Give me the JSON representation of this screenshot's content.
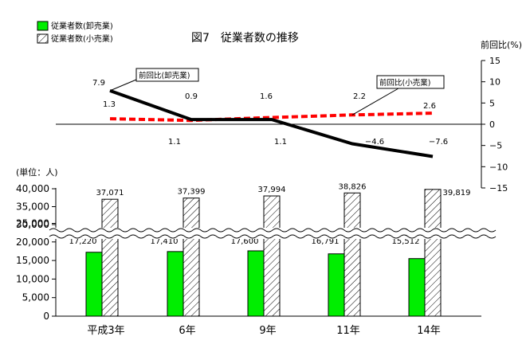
{
  "chart_data": {
    "type": "bar+line",
    "title": "図7　従業者数の推移",
    "categories": [
      "平成3年",
      "6年",
      "9年",
      "11年",
      "14年"
    ],
    "legend": {
      "wholesale": "従業者数(卸売業)",
      "retail": "従業者数(小売業)",
      "placement": "top-left"
    },
    "bar_axis": {
      "unit_label": "(単位：人)",
      "tick_labels_lower": [
        "0",
        "5,000",
        "10,000",
        "15,000",
        "20,000",
        "25,000"
      ],
      "tick_labels_upper": [
        "30,000",
        "35,000",
        "40,000"
      ],
      "broken_axis": true,
      "ylim": [
        0,
        40000
      ]
    },
    "line_axis": {
      "unit_label": "前回比(%)",
      "tick_labels": [
        "15",
        "10",
        "5",
        "0",
        "−5",
        "−10",
        "−15"
      ],
      "ylim": [
        -15,
        15
      ]
    },
    "bar_series": [
      {
        "name": "従業者数(卸売業)",
        "color": "#00ee00",
        "values": [
          17220,
          17410,
          17600,
          16791,
          15512
        ],
        "labels": [
          "17,220",
          "17,410",
          "17,600",
          "16,791",
          "15,512"
        ]
      },
      {
        "name": "従業者数(小売業)",
        "color": "#ffffff",
        "pattern": "diagonal-hatch",
        "values": [
          37071,
          37399,
          37994,
          38826,
          39819
        ],
        "labels": [
          "37,071",
          "37,399",
          "37,994",
          "38,826",
          "39,819"
        ]
      }
    ],
    "line_series": [
      {
        "name": "前回比(卸売業)",
        "color": "#000000",
        "style": "solid",
        "values": [
          7.9,
          1.1,
          1.1,
          -4.6,
          -7.6
        ],
        "labels": [
          "7.9",
          "1.1",
          "1.1",
          "−4.6",
          "−7.6"
        ],
        "callout": "前回比(卸売業)"
      },
      {
        "name": "前回比(小売業)",
        "color": "#ff0000",
        "style": "dashed",
        "values": [
          1.3,
          0.9,
          1.6,
          2.2,
          2.6
        ],
        "labels": [
          "1.3",
          "0.9",
          "1.6",
          "2.2",
          "2.6"
        ],
        "callout": "前回比(小売業)"
      }
    ]
  }
}
